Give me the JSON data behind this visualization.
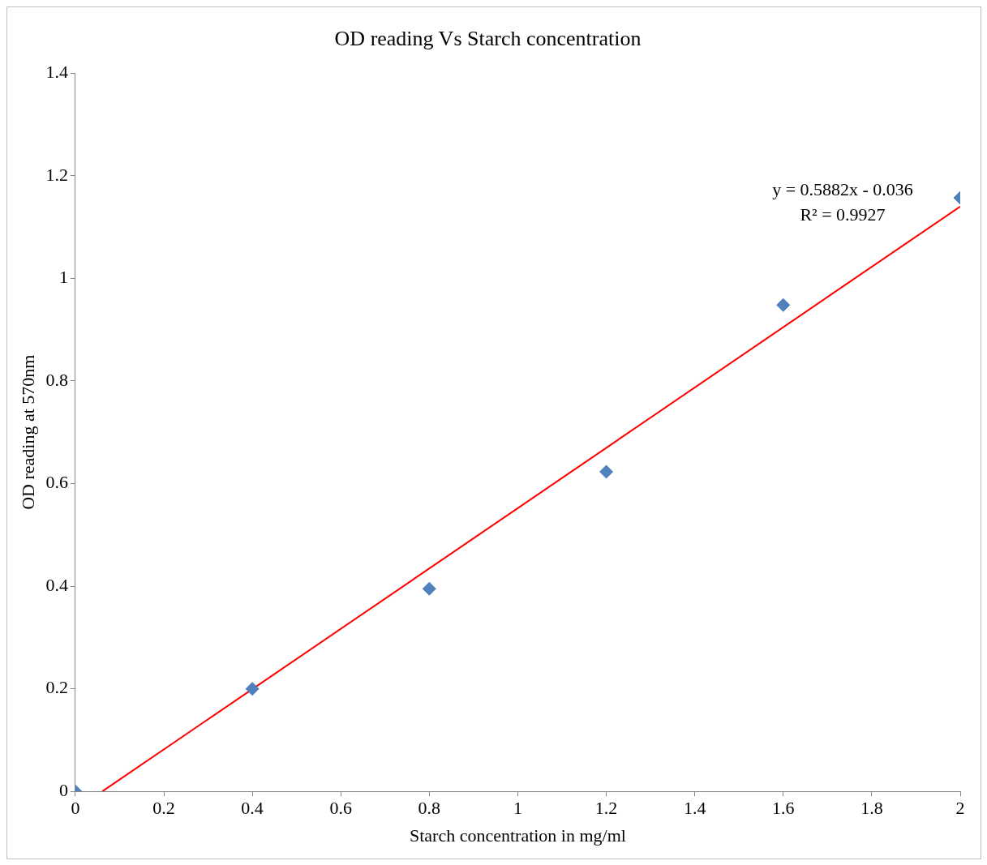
{
  "chart_data": {
    "type": "scatter",
    "title": "OD reading Vs Starch concentration",
    "xlabel": "Starch concentration in mg/ml",
    "ylabel": "OD reading at 570nm",
    "series": [
      {
        "color": "#4f81bd",
        "x": [
          0,
          0.4,
          0.8,
          1.2,
          1.6,
          2
        ],
        "values": [
          0,
          0.2,
          0.395,
          0.623,
          0.948,
          1.157
        ],
        "marker": "diamond"
      },
      {
        "type": "line",
        "color": "#ff0000",
        "x": [
          0.061,
          2
        ],
        "values": [
          0,
          1.14
        ],
        "marker": "none",
        "line_style": "solid"
      }
    ],
    "xlim": [
      0,
      2
    ],
    "xticks": [
      0,
      0.2,
      0.4,
      0.6,
      0.8,
      1,
      1.2,
      1.4,
      1.6,
      1.8,
      2
    ],
    "ylim": [
      0,
      1.4
    ],
    "yticks": [
      0,
      0.2,
      0.4,
      0.6,
      0.8,
      1,
      1.2,
      1.4
    ],
    "grid": false,
    "legend": false,
    "annotations": [
      "y = 0.5882x - 0.036",
      "R² = 0.9927"
    ]
  }
}
